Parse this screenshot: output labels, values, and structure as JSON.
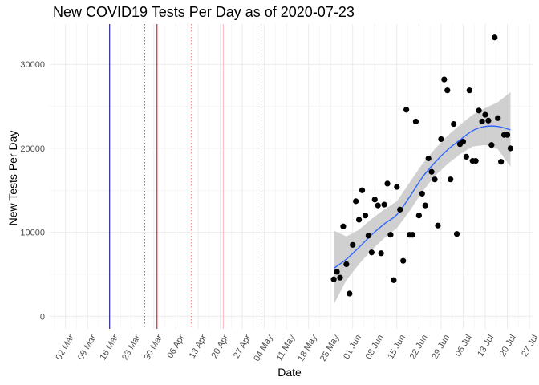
{
  "chart_data": {
    "type": "scatter",
    "title": "New COVID19 Tests Per Day as of 2020-07-23",
    "xlabel": "Date",
    "ylabel": "New Tests Per Day",
    "x_ticks": [
      "02 Mar",
      "09 Mar",
      "16 Mar",
      "23 Mar",
      "30 Mar",
      "06 Apr",
      "13 Apr",
      "20 Apr",
      "27 Apr",
      "04 May",
      "11 May",
      "18 May",
      "25 May",
      "01 Jun",
      "08 Jun",
      "15 Jun",
      "22 Jun",
      "29 Jun",
      "06 Jul",
      "13 Jul",
      "20 Jul",
      "27 Jul"
    ],
    "x_range": [
      "2020-02-26",
      "2020-07-28"
    ],
    "y_ticks": [
      0,
      10000,
      20000,
      30000
    ],
    "ylim": [
      -1500,
      34800
    ],
    "grid": true,
    "vertical_lines": [
      {
        "date": "2020-03-16",
        "color": "#00007f",
        "style": "solid"
      },
      {
        "date": "2020-03-27",
        "color": "#000000",
        "style": "dotted"
      },
      {
        "date": "2020-03-31",
        "color": "#cc0000",
        "style": "solid"
      },
      {
        "date": "2020-04-11",
        "color": "#cc0000",
        "style": "dotted"
      },
      {
        "date": "2020-04-21",
        "color": "#ffb6c1",
        "style": "solid"
      },
      {
        "date": "2020-05-03",
        "color": "#ffb6c1",
        "style": "dotted"
      }
    ],
    "series": [
      {
        "type": "points",
        "color": "#000000",
        "points": [
          [
            "2020-05-26",
            4400
          ],
          [
            "2020-05-27",
            5300
          ],
          [
            "2020-05-28",
            4600
          ],
          [
            "2020-05-29",
            10700
          ],
          [
            "2020-05-30",
            6200
          ],
          [
            "2020-05-31",
            2700
          ],
          [
            "2020-06-01",
            8500
          ],
          [
            "2020-06-02",
            13700
          ],
          [
            "2020-06-03",
            11500
          ],
          [
            "2020-06-04",
            15000
          ],
          [
            "2020-06-05",
            12000
          ],
          [
            "2020-06-06",
            9600
          ],
          [
            "2020-06-07",
            7600
          ],
          [
            "2020-06-08",
            13900
          ],
          [
            "2020-06-09",
            13200
          ],
          [
            "2020-06-10",
            7500
          ],
          [
            "2020-06-11",
            13300
          ],
          [
            "2020-06-12",
            15800
          ],
          [
            "2020-06-13",
            9700
          ],
          [
            "2020-06-14",
            4300
          ],
          [
            "2020-06-15",
            15400
          ],
          [
            "2020-06-16",
            12700
          ],
          [
            "2020-06-17",
            6600
          ],
          [
            "2020-06-18",
            24600
          ],
          [
            "2020-06-19",
            9700
          ],
          [
            "2020-06-20",
            9700
          ],
          [
            "2020-06-21",
            23200
          ],
          [
            "2020-06-22",
            12000
          ],
          [
            "2020-06-23",
            14600
          ],
          [
            "2020-06-24",
            13200
          ],
          [
            "2020-06-25",
            18800
          ],
          [
            "2020-06-26",
            17200
          ],
          [
            "2020-06-27",
            16300
          ],
          [
            "2020-06-28",
            10800
          ],
          [
            "2020-06-29",
            21100
          ],
          [
            "2020-06-30",
            28200
          ],
          [
            "2020-07-01",
            26900
          ],
          [
            "2020-07-02",
            16300
          ],
          [
            "2020-07-03",
            22900
          ],
          [
            "2020-07-04",
            9800
          ],
          [
            "2020-07-05",
            20500
          ],
          [
            "2020-07-06",
            20800
          ],
          [
            "2020-07-07",
            19000
          ],
          [
            "2020-07-08",
            26900
          ],
          [
            "2020-07-09",
            18500
          ],
          [
            "2020-07-10",
            18500
          ],
          [
            "2020-07-11",
            24500
          ],
          [
            "2020-07-12",
            23200
          ],
          [
            "2020-07-13",
            24000
          ],
          [
            "2020-07-14",
            23300
          ],
          [
            "2020-07-15",
            20400
          ],
          [
            "2020-07-16",
            33200
          ],
          [
            "2020-07-17",
            23600
          ],
          [
            "2020-07-18",
            18400
          ],
          [
            "2020-07-19",
            21600
          ],
          [
            "2020-07-20",
            21600
          ],
          [
            "2020-07-21",
            20000
          ]
        ]
      },
      {
        "type": "smooth",
        "color": "#3366ff",
        "band_color": "#c8c8c8",
        "points": [
          [
            "2020-05-26",
            5700,
            1400,
            10200
          ],
          [
            "2020-05-30",
            6800,
            4300,
            9500
          ],
          [
            "2020-06-03",
            8200,
            6200,
            10300
          ],
          [
            "2020-06-07",
            9700,
            7900,
            11600
          ],
          [
            "2020-06-11",
            11000,
            9300,
            12700
          ],
          [
            "2020-06-15",
            12100,
            10500,
            13700
          ],
          [
            "2020-06-19",
            14200,
            12500,
            15900
          ],
          [
            "2020-06-23",
            16500,
            14800,
            18100
          ],
          [
            "2020-06-27",
            18300,
            16700,
            19900
          ],
          [
            "2020-07-01",
            19800,
            18100,
            21500
          ],
          [
            "2020-07-05",
            21000,
            19300,
            22800
          ],
          [
            "2020-07-09",
            22100,
            20200,
            24000
          ],
          [
            "2020-07-13",
            22600,
            20400,
            24800
          ],
          [
            "2020-07-17",
            22600,
            19900,
            25500
          ],
          [
            "2020-07-21",
            22200,
            17800,
            26700
          ]
        ]
      }
    ]
  }
}
